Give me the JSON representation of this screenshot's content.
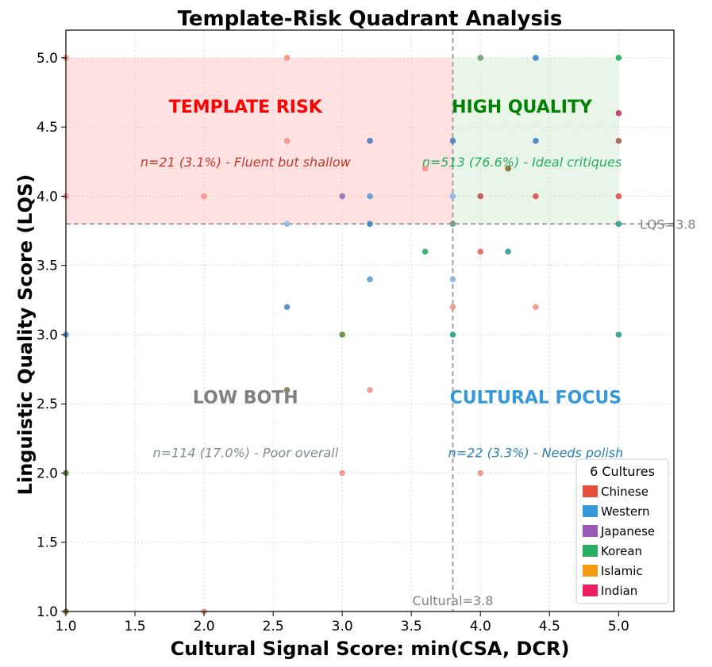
{
  "chart_data": {
    "type": "scatter",
    "title": "Template-Risk Quadrant Analysis",
    "xlabel": "Cultural Signal Score: min(CSA, DCR)",
    "ylabel": "Linguistic Quality Score (LQS)",
    "xlim": [
      1.0,
      5.4
    ],
    "ylim": [
      1.0,
      5.2
    ],
    "xticks": [
      1.0,
      1.5,
      2.0,
      2.5,
      3.0,
      3.5,
      4.0,
      4.5,
      5.0
    ],
    "xtick_labels": [
      "1.0",
      "1.5",
      "2.0",
      "2.5",
      "3.0",
      "3.5",
      "4.0",
      "4.5",
      "5.0"
    ],
    "yticks": [
      1.0,
      1.5,
      2.0,
      2.5,
      3.0,
      3.5,
      4.0,
      4.5,
      5.0
    ],
    "ytick_labels": [
      "1.0",
      "1.5",
      "2.0",
      "2.5",
      "3.0",
      "3.5",
      "4.0",
      "4.5",
      "5.0"
    ],
    "grid": true,
    "thresholds": {
      "x": 3.8,
      "x_label": "Cultural=3.8",
      "y": 3.8,
      "y_label": "LQS=3.8"
    },
    "quadrants": [
      {
        "name": "TEMPLATE RISK",
        "note": "n=21 (3.1%) - Fluent but shallow",
        "color": "#ff0000",
        "note_color": "#c0392b",
        "fill": "#ffb3b3",
        "x_range": [
          1.0,
          3.8
        ],
        "y_range": [
          3.8,
          5.0
        ],
        "label_pos": [
          2.3,
          4.65
        ],
        "note_pos": [
          2.3,
          4.25
        ]
      },
      {
        "name": "HIGH QUALITY",
        "note": "n=513 (76.6%) - Ideal critiques",
        "color": "#008000",
        "note_color": "#27ae60",
        "fill": "#c8e6c9",
        "x_range": [
          3.8,
          5.0
        ],
        "y_range": [
          3.8,
          5.0
        ],
        "label_pos": [
          4.3,
          4.65
        ],
        "note_pos": [
          4.3,
          4.25
        ]
      },
      {
        "name": "LOW BOTH",
        "note": "n=114 (17.0%) - Poor overall",
        "color": "#808080",
        "note_color": "#7f8c8d",
        "label_pos": [
          2.3,
          2.55
        ],
        "note_pos": [
          2.3,
          2.15
        ]
      },
      {
        "name": "CULTURAL FOCUS",
        "note": "n=22 (3.3%) - Needs polish",
        "color": "#3498db",
        "note_color": "#2980b9",
        "label_pos": [
          4.4,
          2.55
        ],
        "note_pos": [
          4.4,
          2.15
        ]
      }
    ],
    "legend": {
      "title": "6 Cultures",
      "location": "lower-right",
      "items": [
        {
          "name": "Chinese",
          "color": "#e74c3c"
        },
        {
          "name": "Western",
          "color": "#3498db"
        },
        {
          "name": "Japanese",
          "color": "#9b59b6"
        },
        {
          "name": "Korean",
          "color": "#27ae60"
        },
        {
          "name": "Islamic",
          "color": "#f39c12"
        },
        {
          "name": "Indian",
          "color": "#e91e63"
        }
      ]
    },
    "points": [
      {
        "x": 1.0,
        "y": 5.0,
        "c": "#f1948a"
      },
      {
        "x": 2.6,
        "y": 5.0,
        "c": "#f1948a"
      },
      {
        "x": 4.0,
        "y": 5.0,
        "c": "#6e9e72"
      },
      {
        "x": 4.4,
        "y": 5.0,
        "c": "#3d85c6"
      },
      {
        "x": 5.0,
        "y": 5.0,
        "c": "#27ae60"
      },
      {
        "x": 5.0,
        "y": 4.6,
        "c": "#c0395a"
      },
      {
        "x": 2.6,
        "y": 4.4,
        "c": "#f1948a"
      },
      {
        "x": 3.2,
        "y": 4.4,
        "c": "#4a7ebb"
      },
      {
        "x": 3.8,
        "y": 4.4,
        "c": "#4a7ebb"
      },
      {
        "x": 4.4,
        "y": 4.4,
        "c": "#3d85c6"
      },
      {
        "x": 5.0,
        "y": 4.4,
        "c": "#a0604a"
      },
      {
        "x": 3.6,
        "y": 4.2,
        "c": "#f1948a"
      },
      {
        "x": 4.2,
        "y": 4.2,
        "c": "#8a6a2a"
      },
      {
        "x": 1.0,
        "y": 4.0,
        "c": "#f1948a"
      },
      {
        "x": 2.0,
        "y": 4.0,
        "c": "#f1948a"
      },
      {
        "x": 3.0,
        "y": 4.0,
        "c": "#8a7ab0"
      },
      {
        "x": 3.2,
        "y": 4.0,
        "c": "#5b9bd5"
      },
      {
        "x": 3.8,
        "y": 4.0,
        "c": "#8fb8e0"
      },
      {
        "x": 4.0,
        "y": 4.0,
        "c": "#c0504d"
      },
      {
        "x": 4.4,
        "y": 4.0,
        "c": "#d9534f"
      },
      {
        "x": 5.0,
        "y": 4.0,
        "c": "#d9534f"
      },
      {
        "x": 2.6,
        "y": 3.8,
        "c": "#8fb8e0"
      },
      {
        "x": 3.2,
        "y": 3.8,
        "c": "#3d85c6"
      },
      {
        "x": 3.8,
        "y": 3.8,
        "c": "#6e9e72"
      },
      {
        "x": 5.0,
        "y": 3.8,
        "c": "#2e9e8e"
      },
      {
        "x": 3.6,
        "y": 3.6,
        "c": "#27ae60"
      },
      {
        "x": 4.0,
        "y": 3.6,
        "c": "#e06666"
      },
      {
        "x": 4.2,
        "y": 3.6,
        "c": "#2e9e8e"
      },
      {
        "x": 3.2,
        "y": 3.4,
        "c": "#5b9bd5"
      },
      {
        "x": 3.8,
        "y": 3.4,
        "c": "#8fb8e0"
      },
      {
        "x": 2.6,
        "y": 3.2,
        "c": "#4a8fbf"
      },
      {
        "x": 3.8,
        "y": 3.2,
        "c": "#f1948a"
      },
      {
        "x": 4.4,
        "y": 3.2,
        "c": "#f1948a"
      },
      {
        "x": 1.0,
        "y": 3.0,
        "c": "#5b9bd5"
      },
      {
        "x": 3.0,
        "y": 3.0,
        "c": "#5a8f3a"
      },
      {
        "x": 3.8,
        "y": 3.0,
        "c": "#2e9e8e"
      },
      {
        "x": 5.0,
        "y": 3.0,
        "c": "#2e9e8e"
      },
      {
        "x": 2.6,
        "y": 2.6,
        "c": "#8a7a4a"
      },
      {
        "x": 3.2,
        "y": 2.6,
        "c": "#f1948a"
      },
      {
        "x": 1.0,
        "y": 2.0,
        "c": "#5a8f3a"
      },
      {
        "x": 3.0,
        "y": 2.0,
        "c": "#f1948a"
      },
      {
        "x": 4.0,
        "y": 2.0,
        "c": "#f1948a"
      },
      {
        "x": 1.0,
        "y": 1.0,
        "c": "#8a7a4a"
      },
      {
        "x": 2.0,
        "y": 1.0,
        "c": "#f1948a"
      }
    ]
  }
}
